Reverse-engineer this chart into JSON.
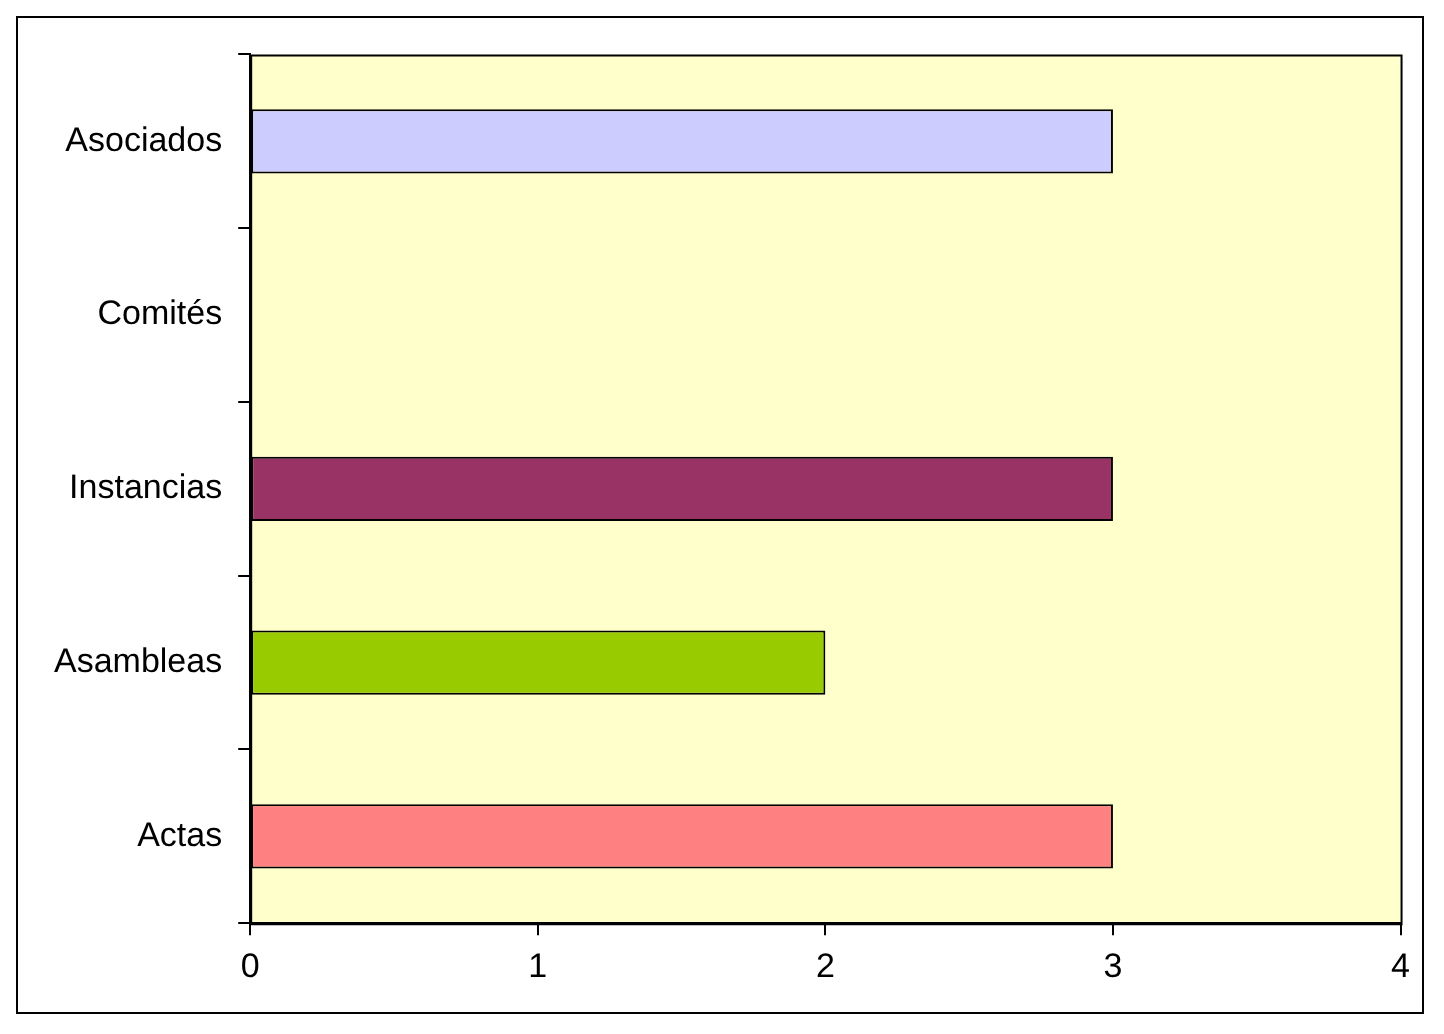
{
  "chart_data": {
    "type": "bar",
    "orientation": "horizontal",
    "categories": [
      "Asociados",
      "Comités",
      "Instancias",
      "Asambleas",
      "Actas"
    ],
    "values": [
      3,
      null,
      3,
      2,
      3
    ],
    "colors": [
      "#ccccff",
      null,
      "#993366",
      "#99cc00",
      "#ff8080"
    ],
    "xlim": [
      0,
      4
    ],
    "xticks": [
      0,
      1,
      2,
      3,
      4
    ],
    "grid": false,
    "legend": false
  }
}
